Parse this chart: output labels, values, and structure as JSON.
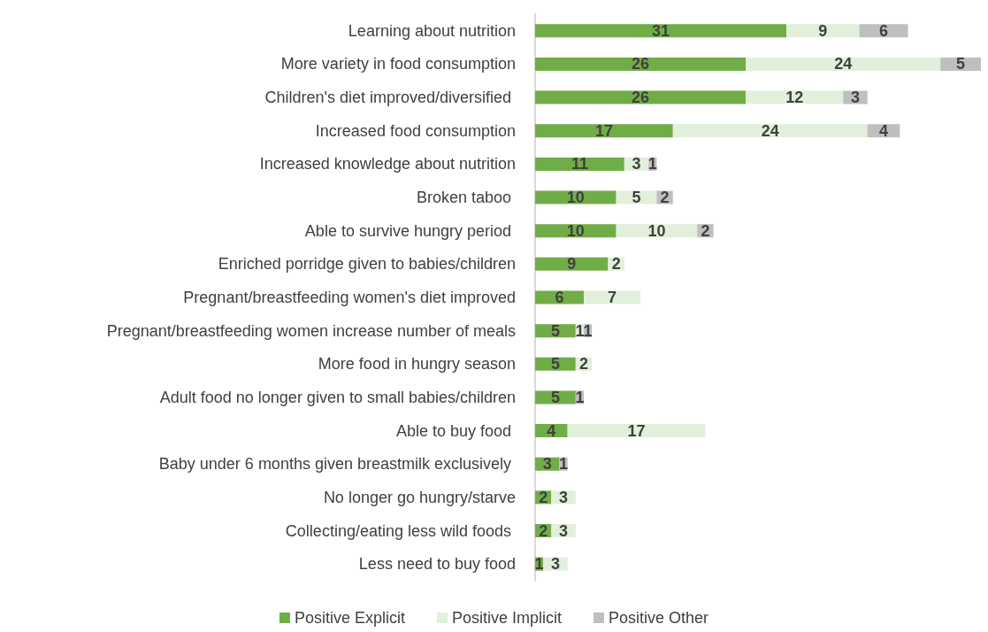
{
  "chart_data": {
    "type": "bar",
    "orientation": "horizontal",
    "stacked": true,
    "data_labels": true,
    "legend": "bottom",
    "categories": [
      "Learning about nutrition",
      "More variety in food consumption",
      "Children's diet improved/diversified ",
      "Increased food consumption",
      "Increased knowledge about nutrition",
      "Broken taboo ",
      "Able to survive hungry period ",
      "Enriched porridge given to babies/children",
      "Pregnant/breastfeeding women's diet improved",
      "Pregnant/breastfeeding women increase number of meals",
      "More food in hungry season",
      "Adult food no longer given to small babies/children",
      "Able to buy food ",
      "Baby under 6 months given breastmilk exclusively ",
      "No longer go hungry/starve",
      "Collecting/eating less wild foods ",
      "Less need to buy food"
    ],
    "series": [
      {
        "name": "Positive Explicit",
        "color": "#70ad47",
        "values": [
          31,
          26,
          26,
          17,
          11,
          10,
          10,
          9,
          6,
          5,
          5,
          5,
          4,
          3,
          2,
          2,
          1
        ]
      },
      {
        "name": "Positive Implicit",
        "color": "#e2efda",
        "values": [
          9,
          24,
          12,
          24,
          3,
          5,
          10,
          2,
          7,
          1,
          2,
          null,
          17,
          null,
          3,
          3,
          3
        ]
      },
      {
        "name": "Positive Other",
        "color": "#bfbfbf",
        "values": [
          6,
          5,
          3,
          4,
          1,
          2,
          2,
          null,
          null,
          1,
          null,
          1,
          null,
          1,
          null,
          null,
          null
        ]
      }
    ]
  }
}
